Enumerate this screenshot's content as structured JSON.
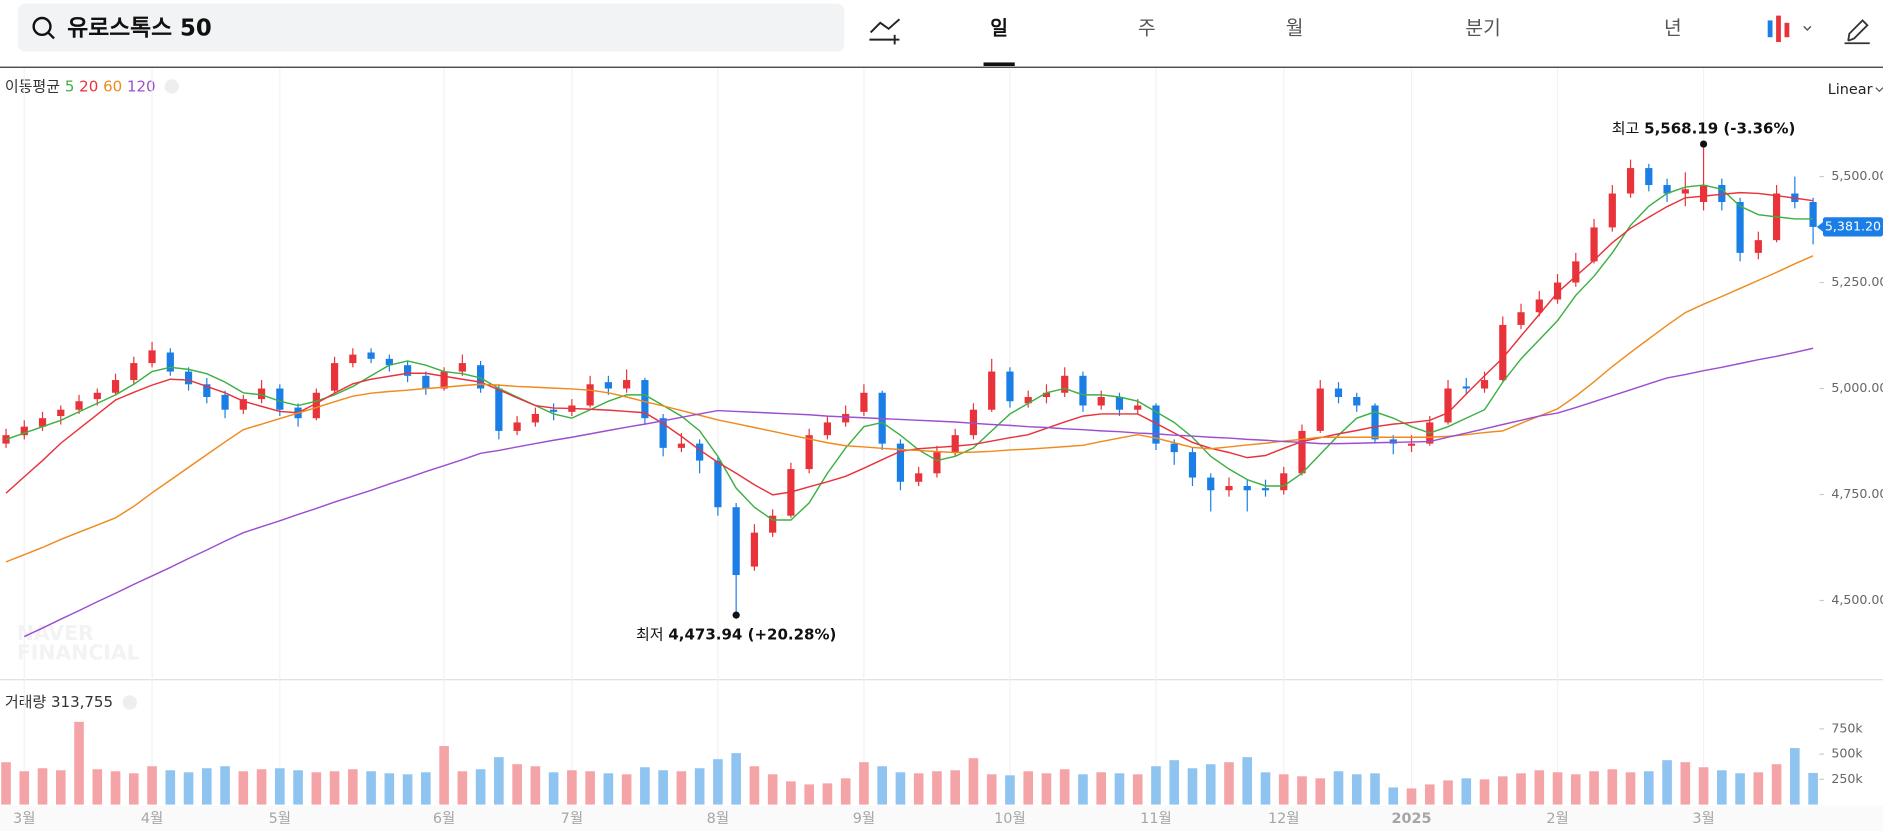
{
  "header": {
    "search": "유로스톡스 50",
    "tabs": [
      "일",
      "주",
      "월",
      "분기",
      "년"
    ],
    "active_tab": 0,
    "scale": "Linear"
  },
  "chart_data": {
    "type": "candlestick",
    "ma_title": "이동평균",
    "up_color": "#e8333a",
    "down_color": "#1a7ee6",
    "up_volume_color": "#f4a3a6",
    "down_volume_color": "#8fc3f0",
    "ylim": [
      4316,
      5755
    ],
    "yticks": [
      {
        "value": 4500,
        "label": "4,500.00"
      },
      {
        "value": 4750,
        "label": "4,750.00"
      },
      {
        "value": 5000,
        "label": "5,000.00"
      },
      {
        "value": 5250,
        "label": "5,250.00"
      },
      {
        "value": 5500,
        "label": "5,500.00"
      }
    ],
    "x_labels": [
      "3월",
      "4월",
      "5월",
      "6월",
      "7월",
      "8월",
      "9월",
      "10월",
      "11월",
      "12월",
      "2025",
      "2월",
      "3월"
    ],
    "x_label_index": [
      1,
      8,
      15,
      24,
      31,
      39,
      47,
      55,
      63,
      70,
      77,
      85,
      93
    ],
    "candles": [
      [
        4870,
        4905,
        4860,
        4890
      ],
      [
        4890,
        4925,
        4880,
        4910
      ],
      [
        4910,
        4945,
        4900,
        4930
      ],
      [
        4935,
        4960,
        4915,
        4950
      ],
      [
        4950,
        4985,
        4940,
        4970
      ],
      [
        4975,
        5000,
        4960,
        4990
      ],
      [
        4990,
        5035,
        4985,
        5020
      ],
      [
        5020,
        5075,
        5010,
        5060
      ],
      [
        5060,
        5110,
        5050,
        5090
      ],
      [
        5085,
        5095,
        5030,
        5040
      ],
      [
        5040,
        5050,
        4995,
        5010
      ],
      [
        5010,
        5025,
        4965,
        4980
      ],
      [
        4985,
        4995,
        4930,
        4950
      ],
      [
        4950,
        4985,
        4940,
        4975
      ],
      [
        4975,
        5020,
        4965,
        5000
      ],
      [
        5000,
        5010,
        4935,
        4950
      ],
      [
        4955,
        4965,
        4910,
        4930
      ],
      [
        4930,
        5000,
        4925,
        4990
      ],
      [
        4995,
        5075,
        4990,
        5060
      ],
      [
        5060,
        5095,
        5050,
        5080
      ],
      [
        5085,
        5095,
        5060,
        5070
      ],
      [
        5070,
        5080,
        5040,
        5055
      ],
      [
        5055,
        5065,
        5015,
        5030
      ],
      [
        5030,
        5040,
        4985,
        5000
      ],
      [
        5000,
        5050,
        4995,
        5040
      ],
      [
        5040,
        5080,
        5030,
        5060
      ],
      [
        5055,
        5065,
        4990,
        5000
      ],
      [
        5000,
        5010,
        4880,
        4900
      ],
      [
        4900,
        4935,
        4890,
        4920
      ],
      [
        4920,
        4955,
        4910,
        4940
      ],
      [
        4950,
        4965,
        4925,
        4945
      ],
      [
        4945,
        4975,
        4935,
        4960
      ],
      [
        4960,
        5030,
        4955,
        5010
      ],
      [
        5015,
        5030,
        4985,
        5000
      ],
      [
        5000,
        5045,
        4990,
        5020
      ],
      [
        5020,
        5025,
        4915,
        4930
      ],
      [
        4930,
        4940,
        4840,
        4860
      ],
      [
        4860,
        4895,
        4850,
        4870
      ],
      [
        4870,
        4880,
        4800,
        4830
      ],
      [
        4830,
        4840,
        4700,
        4720
      ],
      [
        4720,
        4730,
        4473.94,
        4560
      ],
      [
        4580,
        4680,
        4570,
        4660
      ],
      [
        4660,
        4715,
        4650,
        4700
      ],
      [
        4700,
        4825,
        4695,
        4810
      ],
      [
        4810,
        4905,
        4800,
        4890
      ],
      [
        4890,
        4935,
        4880,
        4920
      ],
      [
        4920,
        4960,
        4910,
        4940
      ],
      [
        4945,
        5010,
        4935,
        4990
      ],
      [
        4990,
        4995,
        4855,
        4870
      ],
      [
        4870,
        4880,
        4760,
        4780
      ],
      [
        4780,
        4815,
        4770,
        4800
      ],
      [
        4800,
        4865,
        4790,
        4850
      ],
      [
        4850,
        4905,
        4840,
        4890
      ],
      [
        4890,
        4965,
        4880,
        4950
      ],
      [
        4950,
        5070,
        4945,
        5040
      ],
      [
        5040,
        5050,
        4955,
        4970
      ],
      [
        4965,
        4995,
        4955,
        4980
      ],
      [
        4980,
        5010,
        4965,
        4990
      ],
      [
        4990,
        5050,
        4980,
        5030
      ],
      [
        5030,
        5040,
        4945,
        4960
      ],
      [
        4960,
        4995,
        4950,
        4980
      ],
      [
        4980,
        4990,
        4935,
        4950
      ],
      [
        4950,
        4975,
        4940,
        4960
      ],
      [
        4960,
        4965,
        4855,
        4870
      ],
      [
        4870,
        4880,
        4820,
        4850
      ],
      [
        4850,
        4860,
        4770,
        4790
      ],
      [
        4790,
        4800,
        4710,
        4760
      ],
      [
        4760,
        4790,
        4745,
        4770
      ],
      [
        4770,
        4785,
        4710,
        4760
      ],
      [
        4765,
        4785,
        4745,
        4760
      ],
      [
        4760,
        4815,
        4750,
        4800
      ],
      [
        4800,
        4915,
        4795,
        4900
      ],
      [
        4900,
        5020,
        4895,
        5000
      ],
      [
        5000,
        5015,
        4965,
        4980
      ],
      [
        4980,
        4990,
        4945,
        4960
      ],
      [
        4960,
        4965,
        4870,
        4880
      ],
      [
        4880,
        4890,
        4845,
        4870
      ],
      [
        4865,
        4890,
        4850,
        4870
      ],
      [
        4870,
        4935,
        4865,
        4920
      ],
      [
        4920,
        5020,
        4915,
        5000
      ],
      [
        5005,
        5025,
        4985,
        5000
      ],
      [
        5000,
        5040,
        4990,
        5020
      ],
      [
        5020,
        5170,
        5015,
        5150
      ],
      [
        5150,
        5200,
        5140,
        5180
      ],
      [
        5180,
        5230,
        5170,
        5210
      ],
      [
        5210,
        5270,
        5200,
        5250
      ],
      [
        5250,
        5320,
        5240,
        5300
      ],
      [
        5300,
        5400,
        5295,
        5380
      ],
      [
        5380,
        5480,
        5370,
        5460
      ],
      [
        5460,
        5540,
        5450,
        5520
      ],
      [
        5520,
        5530,
        5465,
        5480
      ],
      [
        5480,
        5495,
        5440,
        5460
      ],
      [
        5460,
        5510,
        5430,
        5470
      ],
      [
        5440,
        5568.19,
        5420,
        5480
      ],
      [
        5480,
        5495,
        5420,
        5440
      ],
      [
        5440,
        5450,
        5300,
        5320
      ],
      [
        5320,
        5370,
        5305,
        5350
      ],
      [
        5350,
        5480,
        5345,
        5460
      ],
      [
        5460,
        5500,
        5425,
        5440
      ],
      [
        5440,
        5450,
        5340,
        5381.2
      ]
    ],
    "series": [
      {
        "name": "5",
        "color": "#3cb043",
        "values": [
          4880,
          4895,
          4910,
          4925,
          4945,
          4965,
          4985,
          5010,
          5040,
          5050,
          5045,
          5035,
          5015,
          4990,
          4985,
          4970,
          4960,
          4970,
          4985,
          5005,
          5030,
          5055,
          5065,
          5055,
          5040,
          5035,
          5025,
          5000,
          4980,
          4960,
          4940,
          4930,
          4950,
          4970,
          4985,
          4985,
          4960,
          4935,
          4900,
          4840,
          4765,
          4720,
          4690,
          4690,
          4730,
          4800,
          4860,
          4910,
          4920,
          4890,
          4855,
          4830,
          4840,
          4860,
          4900,
          4940,
          4965,
          4990,
          5000,
          4985,
          4985,
          4980,
          4970,
          4945,
          4920,
          4885,
          4840,
          4810,
          4785,
          4770,
          4770,
          4800,
          4845,
          4890,
          4930,
          4945,
          4930,
          4910,
          4895,
          4910,
          4930,
          4950,
          5015,
          5070,
          5115,
          5160,
          5220,
          5265,
          5320,
          5385,
          5430,
          5460,
          5475,
          5480,
          5470,
          5430,
          5410,
          5405,
          5400,
          5400
        ]
      },
      {
        "name": "20",
        "color": "#e8333a",
        "values": [
          4753,
          4792,
          4830,
          4871,
          4905,
          4939,
          4973,
          4991,
          5008,
          5022,
          5020,
          5005,
          4990,
          4970,
          4958,
          4946,
          4943,
          4965,
          4989,
          5011,
          5022,
          5029,
          5036,
          5036,
          5029,
          5022,
          5015,
          4997,
          4978,
          4960,
          4954,
          4953,
          4951,
          4949,
          4946,
          4943,
          4917,
          4887,
          4855,
          4826,
          4800,
          4773,
          4749,
          4756,
          4768,
          4780,
          4793,
          4812,
          4832,
          4852,
          4858,
          4861,
          4864,
          4868,
          4876,
          4884,
          4891,
          4906,
          4921,
          4935,
          4940,
          4940,
          4940,
          4918,
          4895,
          4873,
          4859,
          4849,
          4837,
          4842,
          4859,
          4875,
          4884,
          4893,
          4901,
          4910,
          4916,
          4920,
          4925,
          4943,
          4987,
          5030,
          5072,
          5124,
          5175,
          5226,
          5265,
          5303,
          5344,
          5378,
          5404,
          5429,
          5450,
          5454,
          5458,
          5462,
          5460,
          5455,
          5449,
          5443
        ]
      },
      {
        "name": "60",
        "color": "#f08a1c",
        "values": [
          4591,
          4608,
          4625,
          4644,
          4661,
          4678,
          4695,
          4722,
          4754,
          4784,
          4814,
          4844,
          4874,
          4903,
          4916,
          4929,
          4942,
          4955,
          4969,
          4982,
          4989,
          4993,
          4996,
          5000,
          5003,
          5007,
          5010,
          5008,
          5005,
          5003,
          5001,
          4999,
          4996,
          4990,
          4980,
          4969,
          4959,
          4948,
          4937,
          4926,
          4917,
          4908,
          4899,
          4890,
          4881,
          4872,
          4865,
          4862,
          4859,
          4856,
          4854,
          4851,
          4849,
          4850,
          4852,
          4855,
          4857,
          4860,
          4863,
          4866,
          4875,
          4883,
          4891,
          4883,
          4872,
          4861,
          4858,
          4862,
          4867,
          4871,
          4876,
          4880,
          4885,
          4885,
          4885,
          4885,
          4885,
          4885,
          4885,
          4887,
          4891,
          4896,
          4900,
          4918,
          4935,
          4952,
          4982,
          5016,
          5052,
          5085,
          5117,
          5149,
          5179,
          5199,
          5217,
          5236,
          5255,
          5274,
          5294,
          5313
        ]
      },
      {
        "name": "120",
        "color": "#9b4fd0",
        "values": [
          null,
          4415,
          4435,
          4456,
          4476,
          4497,
          4517,
          4538,
          4558,
          4578,
          4599,
          4619,
          4640,
          4660,
          4674,
          4688,
          4703,
          4717,
          4732,
          4746,
          4760,
          4775,
          4789,
          4804,
          4818,
          4832,
          4847,
          4854,
          4862,
          4870,
          4878,
          4885,
          4893,
          4901,
          4909,
          4916,
          4924,
          4932,
          4940,
          4948,
          4946,
          4944,
          4942,
          4940,
          4938,
          4935,
          4933,
          4931,
          4929,
          4927,
          4925,
          4923,
          4921,
          4918,
          4915,
          4913,
          4910,
          4908,
          4905,
          4903,
          4900,
          4898,
          4895,
          4893,
          4890,
          4888,
          4885,
          4883,
          4880,
          4878,
          4875,
          4873,
          4870,
          4870,
          4871,
          4872,
          4873,
          4874,
          4875,
          4885,
          4895,
          4905,
          4915,
          4925,
          4935,
          4942,
          4955,
          4969,
          4983,
          4997,
          5011,
          5025,
          5033,
          5042,
          5050,
          5059,
          5068,
          5076,
          5085,
          5095
        ]
      }
    ],
    "high_annotation": {
      "label": "최고",
      "text": "5,568.19 (-3.36%)",
      "index": 93
    },
    "low_annotation": {
      "label": "최저",
      "text": "4,473.94 (+20.28%)",
      "index": 40
    },
    "last_price_label": "5,381.20",
    "volume_title": "거래량 313,755",
    "volume": [
      420000,
      330000,
      360000,
      340000,
      820000,
      350000,
      330000,
      310000,
      380000,
      340000,
      320000,
      360000,
      380000,
      330000,
      350000,
      360000,
      340000,
      320000,
      330000,
      350000,
      330000,
      310000,
      300000,
      320000,
      580000,
      330000,
      350000,
      470000,
      400000,
      380000,
      320000,
      340000,
      330000,
      310000,
      300000,
      370000,
      340000,
      330000,
      360000,
      450000,
      510000,
      380000,
      300000,
      230000,
      200000,
      210000,
      260000,
      420000,
      380000,
      320000,
      310000,
      330000,
      340000,
      460000,
      300000,
      290000,
      330000,
      310000,
      350000,
      300000,
      320000,
      310000,
      300000,
      380000,
      440000,
      360000,
      400000,
      420000,
      470000,
      320000,
      300000,
      280000,
      260000,
      330000,
      300000,
      310000,
      170000,
      160000,
      200000,
      240000,
      260000,
      250000,
      280000,
      310000,
      340000,
      320000,
      300000,
      330000,
      350000,
      320000,
      330000,
      440000,
      420000,
      370000,
      340000,
      310000,
      320000,
      400000,
      560000,
      313755
    ],
    "volume_ylim": [
      0,
      1190000
    ],
    "volume_ticks": [
      {
        "value": 250000,
        "label": "250k"
      },
      {
        "value": 500000,
        "label": "500k"
      },
      {
        "value": 750000,
        "label": "750k"
      }
    ],
    "watermark": [
      "NAVER",
      "FINANCIAL"
    ]
  }
}
